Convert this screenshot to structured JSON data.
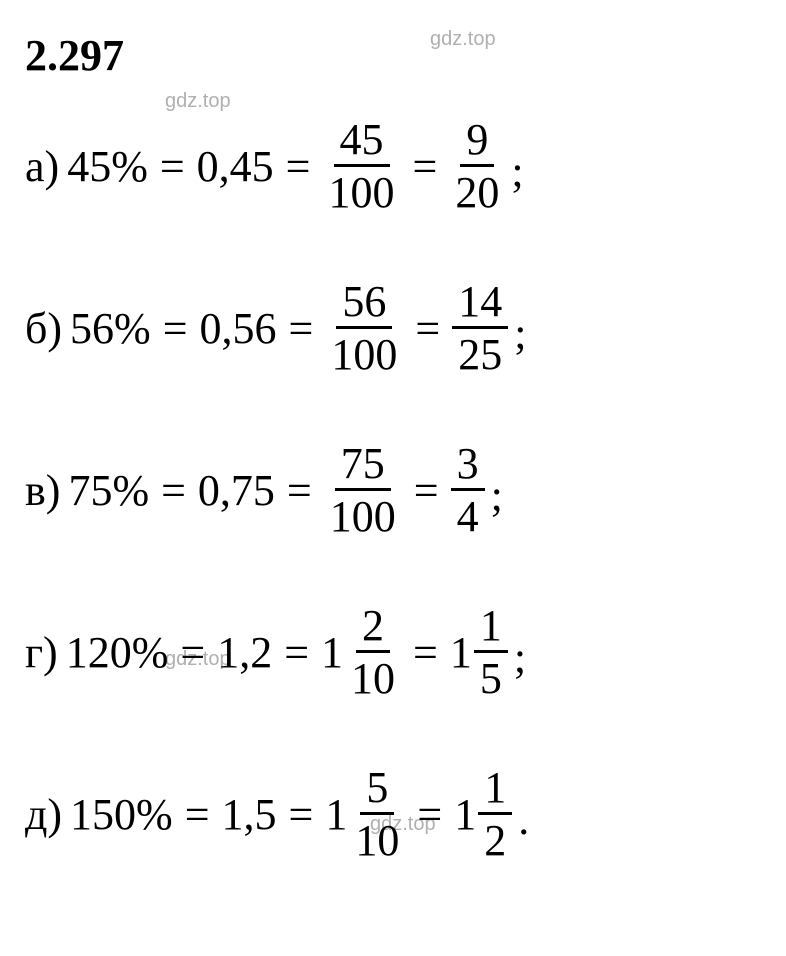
{
  "header": "2.297",
  "watermarks": {
    "w1": "gdz.top",
    "w2": "gdz.top",
    "w3": "gdz.top",
    "w4": "gdz.top"
  },
  "lines": [
    {
      "label": "а)",
      "percent": "45%",
      "decimal": "0,45",
      "frac1_num": "45",
      "frac1_den": "100",
      "frac2_num": "9",
      "frac2_den": "20",
      "terminator": ";",
      "mixed": false
    },
    {
      "label": "б)",
      "percent": "56%",
      "decimal": "0,56",
      "frac1_num": "56",
      "frac1_den": "100",
      "frac2_num": "14",
      "frac2_den": "25",
      "terminator": ";",
      "mixed": false
    },
    {
      "label": "в)",
      "percent": "75%",
      "decimal": "0,75",
      "frac1_num": "75",
      "frac1_den": "100",
      "frac2_num": "3",
      "frac2_den": "4",
      "terminator": ";",
      "mixed": false
    },
    {
      "label": "г)",
      "percent": "120%",
      "decimal": "1,2",
      "whole1": "1",
      "frac1_num": "2",
      "frac1_den": "10",
      "whole2": "1",
      "frac2_num": "1",
      "frac2_den": "5",
      "terminator": ";",
      "mixed": true
    },
    {
      "label": "д)",
      "percent": "150%",
      "decimal": "1,5",
      "whole1": "1",
      "frac1_num": "5",
      "frac1_den": "10",
      "whole2": "1",
      "frac2_num": "1",
      "frac2_den": "2",
      "terminator": ".",
      "mixed": true
    }
  ],
  "style": {
    "background_color": "#ffffff",
    "text_color": "#000000",
    "watermark_color": "#b0b0b0",
    "header_fontsize": 44,
    "body_fontsize": 44,
    "watermark_fontsize": 20
  }
}
